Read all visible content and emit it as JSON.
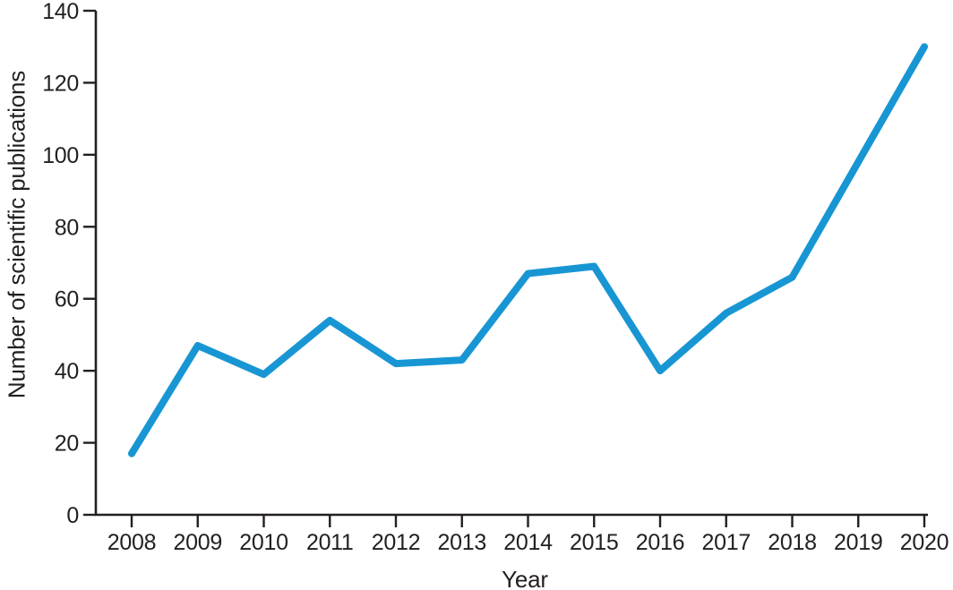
{
  "chart_data": {
    "type": "line",
    "xlabel": "Year",
    "ylabel": "Number of scientific publications",
    "x": [
      2008,
      2009,
      2010,
      2011,
      2012,
      2013,
      2014,
      2015,
      2016,
      2017,
      2018,
      2019,
      2020
    ],
    "values": [
      17,
      47,
      39,
      54,
      42,
      43,
      67,
      69,
      40,
      56,
      66,
      98,
      130
    ],
    "ylim": [
      0,
      140
    ],
    "yticks": [
      0,
      20,
      40,
      60,
      80,
      100,
      120,
      140
    ],
    "grid": false,
    "legend_position": "none",
    "colors": {
      "line": "#1896d4",
      "axis": "#231f20",
      "text": "#231f20",
      "background": "#ffffff"
    }
  }
}
